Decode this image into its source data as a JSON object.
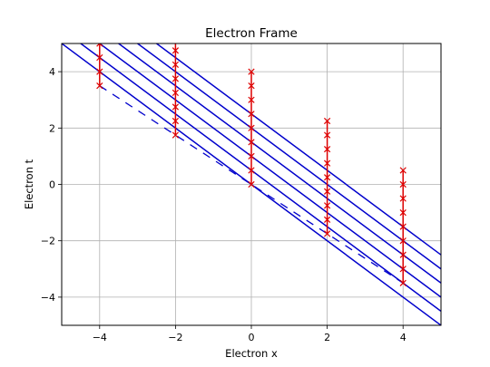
{
  "chart_data": {
    "type": "line",
    "title": "Electron Frame",
    "xlabel": "Electron x",
    "ylabel": "Electron t",
    "xlim": [
      -5,
      5
    ],
    "ylim": [
      -5,
      5
    ],
    "xticks": [
      -4,
      -2,
      0,
      2,
      4
    ],
    "yticks": [
      -4,
      -2,
      0,
      2,
      4
    ],
    "grid": true,
    "colors": {
      "lines": "#0000cc",
      "dashed": "#0000cc",
      "markers": "#dd0000",
      "grid": "#b0b0b0"
    },
    "line_slope": -1,
    "line_intercepts": [
      0,
      0.5,
      1,
      1.5,
      2,
      2.5
    ],
    "dashed_line": {
      "x": [
        -4,
        4
      ],
      "y": [
        3.5,
        -3.5
      ]
    },
    "vertical_segments": [
      {
        "x": -4,
        "y": [
          3.5,
          5
        ]
      },
      {
        "x": -2,
        "y": [
          1.75,
          5
        ]
      },
      {
        "x": 0,
        "y": [
          0,
          4
        ]
      },
      {
        "x": 2,
        "y": [
          -1.75,
          2.25
        ]
      },
      {
        "x": 4,
        "y": [
          -3.5,
          0.5
        ]
      }
    ],
    "marker_series": [
      {
        "x": -4,
        "y": [
          3.5,
          4.0,
          4.5,
          5.0
        ]
      },
      {
        "x": -2,
        "y": [
          1.75,
          2.25,
          2.75,
          3.25,
          3.75,
          4.25,
          4.75
        ]
      },
      {
        "x": 0,
        "y": [
          0,
          0.5,
          1.0,
          1.5,
          2.0,
          2.5,
          3.0,
          3.5,
          4.0
        ]
      },
      {
        "x": 2,
        "y": [
          -1.75,
          -1.25,
          -0.75,
          -0.25,
          0.25,
          0.75,
          1.25,
          1.75,
          2.25
        ]
      },
      {
        "x": 4,
        "y": [
          -3.5,
          -3.0,
          -2.5,
          -2.0,
          -1.5,
          -1.0,
          -0.5,
          0.0,
          0.5
        ]
      }
    ]
  }
}
